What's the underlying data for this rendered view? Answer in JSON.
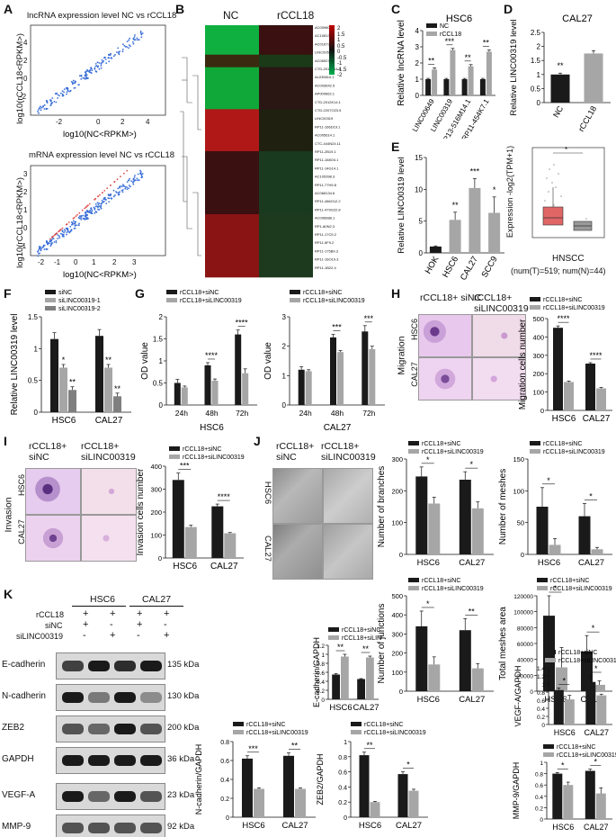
{
  "panels": {
    "A": {
      "label": "A",
      "title1": "lncRNA expression level NC vs rCCL18",
      "title2": "mRNA expression level NC vs rCCL18",
      "xlabel": "log10(NC<RPKM>)",
      "ylabel": "log10(rCCL18<RPKM>)"
    },
    "B": {
      "label": "B",
      "col1": "NC",
      "col2": "rCCL18",
      "scale": [
        "2",
        "1.5",
        "1",
        "0.5",
        "0",
        "-0.5",
        "-1",
        "-1.5",
        "-2"
      ]
    },
    "C": {
      "label": "C",
      "title": "HSC6",
      "ylabel": "Relative lncRNA level"
    },
    "D": {
      "label": "D",
      "title": "CAL27",
      "ylabel": "Relative LINC00319 level"
    },
    "E": {
      "label": "E",
      "ylabel": "Relative LINC00319 level",
      "ylabel2": "Expression -log2(TPM+1)",
      "xcaption": "HNSCC",
      "subcaption": "(num(T)=519; num(N)=44)"
    },
    "F": {
      "label": "F",
      "ylabel": "Relative LINC00319 level"
    },
    "G": {
      "label": "G",
      "ylabel": "OD value",
      "cell1": "HSC6",
      "cell2": "CAL27"
    },
    "H": {
      "label": "H",
      "col1": "rCCL18+ siNC",
      "col2": "rCCL18+ siLINC00319",
      "row_label": "Migration",
      "row1": "HSC6",
      "row2": "CAL27",
      "ylabel": "Migration cells number"
    },
    "I": {
      "label": "I",
      "col1": "rCCL18+ siNC",
      "col2": "rCCL18+ siLINC00319",
      "row_label": "Invasion",
      "row1": "HSC6",
      "row2": "CAL27",
      "ylabel": "Invasion cells number"
    },
    "J": {
      "label": "J",
      "col1": "rCCL18+ siNC",
      "col2": "rCCL18+ siLINC00319",
      "row1": "HSC6",
      "row2": "CAL27"
    },
    "K": {
      "label": "K",
      "cell1": "HSC6",
      "cell2": "CAL27",
      "row_rccl18": "rCCL18",
      "row_sinc": "siNC",
      "row_si": "siLINC00319",
      "plus": "+",
      "minus": "-",
      "blots": [
        {
          "name": "E-cadherin",
          "kda": "135 kDa"
        },
        {
          "name": "N-cadherin",
          "kda": "130 kDa"
        },
        {
          "name": "ZEB2",
          "kda": "200 kDa"
        },
        {
          "name": "GAPDH",
          "kda": "36 kDa"
        },
        {
          "name": "VEGF-A",
          "kda": "23 kDa"
        },
        {
          "name": "MMP-9",
          "kda": "92 kDa"
        },
        {
          "name": "GAPDH",
          "kda": "36 kDa"
        }
      ]
    }
  },
  "heatmap_genes": [
    "AC009802.1",
    "AC108135.2",
    "AC016735.1",
    "LINC00511",
    "AC069277.1",
    "CTD-2012K14.6",
    "AL035610.1",
    "AC093642.5",
    "AP000662.1",
    "CTD-2012K14.1",
    "CTD-2207O23.5",
    "LINC00319",
    "RP11-166D19.1",
    "AC005614.1",
    "CTC-444N24.11",
    "RP11-2B19.1",
    "RP11-168O4.1",
    "RP11-14G14.1",
    "AC105398.3",
    "RP11-77H9.8",
    "AC068134.6",
    "RP11-486O12.2",
    "RP11-479G22.8",
    "AC096888.1",
    "RP1-80N2.3",
    "RP11-17C5.2",
    "RP11-5F9.2",
    "RP11-175B9.3",
    "RP11-16O19.3",
    "RP11-1B22.4"
  ],
  "chart_data": [
    {
      "id": "C",
      "type": "bar",
      "title": "HSC6",
      "ylabel": "Relative lncRNA level",
      "categories": [
        "LINC00649",
        "LINC00319",
        "RP13-516M14.1",
        "RP11-454K7.1"
      ],
      "ylim": [
        0,
        4
      ],
      "yticks": [
        0,
        1,
        2,
        3,
        4
      ],
      "series": [
        {
          "name": "NC",
          "color": "#1a1a1a",
          "values": [
            1,
            1,
            1,
            1
          ],
          "errors": [
            0.05,
            0.05,
            0.05,
            0.05
          ]
        },
        {
          "name": "rCCL18",
          "color": "#a6a6a6",
          "values": [
            1.6,
            2.8,
            1.8,
            2.7
          ],
          "errors": [
            0.1,
            0.1,
            0.1,
            0.1
          ]
        }
      ],
      "significance": [
        "**",
        "***",
        "**",
        "**"
      ]
    },
    {
      "id": "D",
      "type": "bar",
      "title": "CAL27",
      "ylabel": "Relative LINC00319 level",
      "categories": [
        "NC",
        "rCCL18"
      ],
      "ylim": [
        0,
        2.5
      ],
      "yticks": [
        0,
        0.5,
        1,
        1.5,
        2,
        2.5
      ],
      "series": [
        {
          "name": "",
          "color": "#1a1a1a",
          "values": [
            1.0,
            1.75
          ],
          "errors": [
            0.05,
            0.1
          ]
        }
      ],
      "bar_colors": [
        "#1a1a1a",
        "#a6a6a6"
      ],
      "significance": [
        "**"
      ]
    },
    {
      "id": "E",
      "type": "bar",
      "ylabel": "Relative LINC00319 level",
      "categories": [
        "HOK",
        "HSC6",
        "CAL27",
        "SCC9"
      ],
      "ylim": [
        0,
        15
      ],
      "yticks": [
        0,
        5,
        10,
        15
      ],
      "series": [
        {
          "name": "",
          "color": "#a6a6a6",
          "values": [
            1,
            5.2,
            10.2,
            6.3
          ],
          "errors": [
            0.1,
            1.2,
            1.5,
            2.5
          ]
        }
      ],
      "bar_colors": [
        "#1a1a1a",
        "#a6a6a6",
        "#a6a6a6",
        "#a6a6a6"
      ],
      "significance": [
        "",
        "**",
        "***",
        "*"
      ]
    },
    {
      "id": "F",
      "type": "bar",
      "ylabel": "Relative LINC00319 level",
      "categories": [
        "HSC6",
        "CAL27"
      ],
      "ylim": [
        0,
        1.5
      ],
      "yticks": [
        0,
        0.5,
        1,
        1.5
      ],
      "series": [
        {
          "name": "siNC",
          "color": "#1a1a1a",
          "values": [
            1.15,
            1.2
          ],
          "errors": [
            0.1,
            0.1
          ]
        },
        {
          "name": "siLINC00319-1",
          "color": "#a6a6a6",
          "values": [
            0.7,
            0.7
          ],
          "errors": [
            0.05,
            0.05
          ]
        },
        {
          "name": "siLINC00319-2",
          "color": "#7f7f7f",
          "values": [
            0.35,
            0.25
          ],
          "errors": [
            0.05,
            0.05
          ]
        }
      ],
      "significance": [
        [
          "*",
          "**"
        ],
        [
          "**",
          "**"
        ]
      ]
    },
    {
      "id": "G1",
      "type": "bar",
      "ylabel": "OD value",
      "xlabel": "HSC6",
      "categories": [
        "24h",
        "48h",
        "72h"
      ],
      "ylim": [
        0,
        2
      ],
      "yticks": [
        0,
        0.5,
        1,
        1.5,
        2
      ],
      "series": [
        {
          "name": "rCCL18+siNC",
          "color": "#1a1a1a",
          "values": [
            0.5,
            0.9,
            1.6
          ],
          "errors": [
            0.08,
            0.06,
            0.1
          ]
        },
        {
          "name": "rCCL18+siLINC00319",
          "color": "#a6a6a6",
          "values": [
            0.4,
            0.55,
            0.72
          ],
          "errors": [
            0.03,
            0.04,
            0.1
          ]
        }
      ],
      "significance": [
        "",
        "****",
        "****"
      ]
    },
    {
      "id": "G2",
      "type": "bar",
      "ylabel": "OD value",
      "xlabel": "CAL27",
      "categories": [
        "24h",
        "48h",
        "72h"
      ],
      "ylim": [
        0,
        3
      ],
      "yticks": [
        0,
        1,
        2,
        3
      ],
      "series": [
        {
          "name": "rCCL18+siNC",
          "color": "#1a1a1a",
          "values": [
            1.2,
            2.3,
            2.5
          ],
          "errors": [
            0.1,
            0.1,
            0.2
          ]
        },
        {
          "name": "rCCL18+siLINC00319",
          "color": "#a6a6a6",
          "values": [
            1.15,
            1.8,
            1.9
          ],
          "errors": [
            0.05,
            0.05,
            0.1
          ]
        }
      ],
      "significance": [
        "",
        "***",
        "***"
      ]
    },
    {
      "id": "H",
      "type": "bar",
      "ylabel": "Migration cells number",
      "categories": [
        "HSC6",
        "CAL27"
      ],
      "ylim": [
        0,
        500
      ],
      "yticks": [
        0,
        100,
        200,
        300,
        400,
        500
      ],
      "series": [
        {
          "name": "rCCL18+siNC",
          "color": "#1a1a1a",
          "values": [
            450,
            255
          ],
          "errors": [
            10,
            5
          ]
        },
        {
          "name": "rCCL18+siLINC00319",
          "color": "#a6a6a6",
          "values": [
            155,
            120
          ],
          "errors": [
            5,
            5
          ]
        }
      ],
      "significance": [
        "****",
        "****"
      ]
    },
    {
      "id": "I",
      "type": "bar",
      "ylabel": "Invasion cells number",
      "categories": [
        "HSC6",
        "CAL27"
      ],
      "ylim": [
        0,
        400
      ],
      "yticks": [
        0,
        100,
        200,
        300,
        400
      ],
      "series": [
        {
          "name": "rCCL18+siNC",
          "color": "#1a1a1a",
          "values": [
            340,
            225
          ],
          "errors": [
            30,
            10
          ]
        },
        {
          "name": "rCCL18+siLINC00319",
          "color": "#a6a6a6",
          "values": [
            135,
            108
          ],
          "errors": [
            8,
            3
          ]
        }
      ],
      "significance": [
        "***",
        "****"
      ]
    },
    {
      "id": "J1",
      "type": "bar",
      "ylabel": "Number of branches",
      "categories": [
        "HSC6",
        "CAL27"
      ],
      "ylim": [
        0,
        300
      ],
      "yticks": [
        0,
        100,
        200,
        300
      ],
      "series": [
        {
          "name": "rCCL18+siNC",
          "color": "#1a1a1a",
          "values": [
            245,
            235
          ],
          "errors": [
            30,
            25
          ]
        },
        {
          "name": "rCCL18+siLINC00319",
          "color": "#a6a6a6",
          "values": [
            160,
            145
          ],
          "errors": [
            20,
            20
          ]
        }
      ],
      "significance": [
        "*",
        "*"
      ]
    },
    {
      "id": "J2",
      "type": "bar",
      "ylabel": "Number of meshes",
      "categories": [
        "HSC6",
        "CAL27"
      ],
      "ylim": [
        0,
        150
      ],
      "yticks": [
        0,
        50,
        100,
        150
      ],
      "series": [
        {
          "name": "rCCL18+siNC",
          "color": "#1a1a1a",
          "values": [
            75,
            60
          ],
          "errors": [
            30,
            20
          ]
        },
        {
          "name": "rCCL18+siLINC00319",
          "color": "#a6a6a6",
          "values": [
            15,
            8
          ],
          "errors": [
            10,
            3
          ]
        }
      ],
      "significance": [
        "*",
        "*"
      ]
    },
    {
      "id": "J3",
      "type": "bar",
      "ylabel": "Number of junctions",
      "categories": [
        "HSC6",
        "CAL27"
      ],
      "ylim": [
        0,
        500
      ],
      "yticks": [
        0,
        100,
        200,
        300,
        400,
        500
      ],
      "series": [
        {
          "name": "rCCL18+siNC",
          "color": "#1a1a1a",
          "values": [
            340,
            320
          ],
          "errors": [
            80,
            60
          ]
        },
        {
          "name": "rCCL18+siLINC00319",
          "color": "#a6a6a6",
          "values": [
            140,
            120
          ],
          "errors": [
            40,
            25
          ]
        }
      ],
      "significance": [
        "*",
        "**"
      ]
    },
    {
      "id": "J4",
      "type": "bar",
      "ylabel": "Total meshes area",
      "categories": [
        "HSC6",
        "CAL27"
      ],
      "ylim": [
        0,
        120000
      ],
      "yticks": [
        0,
        20000,
        40000,
        60000,
        80000,
        100000,
        120000
      ],
      "yticklabels": [
        "0",
        "20000",
        "40000",
        "60000",
        "80000",
        "100000",
        "120000"
      ],
      "series": [
        {
          "name": "rCCL18+siNC",
          "color": "#1a1a1a",
          "values": [
            95000,
            50000
          ],
          "errors": [
            25000,
            20000
          ]
        },
        {
          "name": "rCCL18+siLINC00319",
          "color": "#a6a6a6",
          "values": [
            30000,
            8000
          ],
          "errors": [
            25000,
            5000
          ]
        }
      ],
      "significance": [
        "*",
        "*"
      ]
    },
    {
      "id": "K1",
      "type": "bar",
      "ylabel": "E-cadherin/GAPDH",
      "categories": [
        "HSC6",
        "CAL27"
      ],
      "ylim": [
        0,
        1.2
      ],
      "yticks": [
        0,
        0.2,
        0.4,
        0.6,
        0.8,
        1.0,
        1.2
      ],
      "series": [
        {
          "name": "rCCL18+siNC",
          "color": "#1a1a1a",
          "values": [
            0.55,
            0.45
          ],
          "errors": [
            0.02,
            0.01
          ]
        },
        {
          "name": "rCCL18+siLINC00319",
          "color": "#a6a6a6",
          "values": [
            0.95,
            0.93
          ],
          "errors": [
            0.05,
            0.03
          ]
        }
      ],
      "significance": [
        "**",
        "**"
      ]
    },
    {
      "id": "K2",
      "type": "bar",
      "ylabel": "VEGF-A/GAPDH",
      "categories": [
        "HSC6",
        "CAL27"
      ],
      "ylim": [
        0,
        1.4
      ],
      "yticks": [
        0,
        0.2,
        0.4,
        0.6,
        0.8,
        1.0,
        1.2,
        1.4
      ],
      "series": [
        {
          "name": "rCCL18+siNC",
          "color": "#1a1a1a",
          "values": [
            0.85,
            1.05
          ],
          "errors": [
            0.05,
            0.15
          ]
        },
        {
          "name": "rCCL18+siLINC00319",
          "color": "#a6a6a6",
          "values": [
            0.62,
            0.72
          ],
          "errors": [
            0.1,
            0.03
          ]
        }
      ],
      "significance": [
        "*",
        "*"
      ]
    },
    {
      "id": "K3",
      "type": "bar",
      "ylabel": "N-cadherin/GAPDH",
      "categories": [
        "HSC6",
        "CAL27"
      ],
      "ylim": [
        0,
        0.8
      ],
      "yticks": [
        0,
        0.2,
        0.4,
        0.6,
        0.8
      ],
      "series": [
        {
          "name": "rCCL18+siNC",
          "color": "#1a1a1a",
          "values": [
            0.62,
            0.65
          ],
          "errors": [
            0.03,
            0.03
          ]
        },
        {
          "name": "rCCL18+siLINC00319",
          "color": "#a6a6a6",
          "values": [
            0.3,
            0.3
          ],
          "errors": [
            0.01,
            0.01
          ]
        }
      ],
      "significance": [
        "***",
        "**"
      ]
    },
    {
      "id": "K4",
      "type": "bar",
      "ylabel": "ZEB2/GAPDH",
      "categories": [
        "HSC6",
        "CAL27"
      ],
      "ylim": [
        0,
        1.0
      ],
      "yticks": [
        0,
        0.2,
        0.4,
        0.6,
        0.8,
        1.0
      ],
      "series": [
        {
          "name": "rCCL18+siNC",
          "color": "#1a1a1a",
          "values": [
            0.82,
            0.57
          ],
          "errors": [
            0.04,
            0.03
          ]
        },
        {
          "name": "rCCL18+siLINC00319",
          "color": "#a6a6a6",
          "values": [
            0.2,
            0.35
          ],
          "errors": [
            0.01,
            0.02
          ]
        }
      ],
      "significance": [
        "**",
        "*"
      ]
    },
    {
      "id": "K5",
      "type": "bar",
      "ylabel": "MMP-9/GAPDH",
      "categories": [
        "HSC6",
        "CAL27"
      ],
      "ylim": [
        0,
        1.0
      ],
      "yticks": [
        0,
        0.2,
        0.4,
        0.6,
        0.8,
        1.0
      ],
      "series": [
        {
          "name": "rCCL18+siNC",
          "color": "#1a1a1a",
          "values": [
            0.8,
            0.85
          ],
          "errors": [
            0.02,
            0.03
          ]
        },
        {
          "name": "rCCL18+siLINC00319",
          "color": "#a6a6a6",
          "values": [
            0.6,
            0.45
          ],
          "errors": [
            0.05,
            0.1
          ]
        }
      ],
      "significance": [
        "*",
        "*"
      ]
    }
  ]
}
